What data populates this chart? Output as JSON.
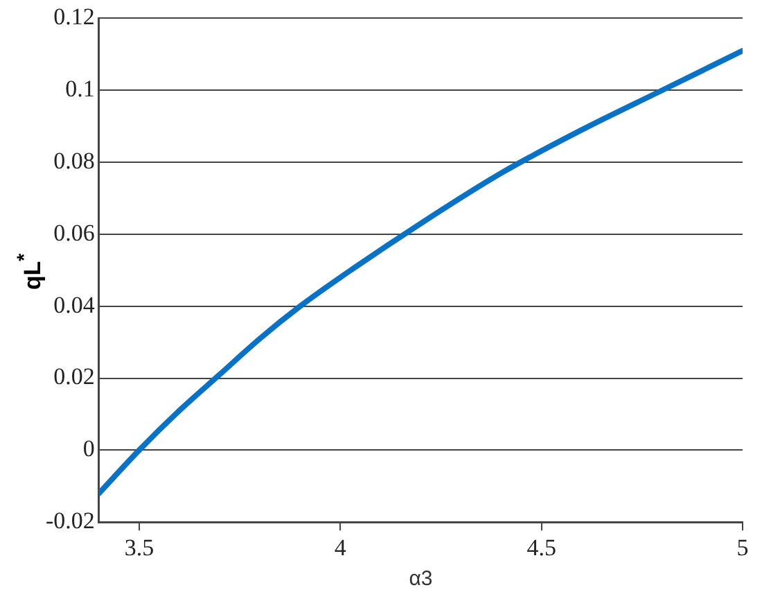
{
  "chart_data": {
    "type": "line",
    "xlabel": "α3",
    "ylabel": "qL$^{*}$",
    "x": [
      3.4,
      3.5,
      3.6,
      3.7,
      3.8,
      3.9,
      4.0,
      4.2,
      4.4,
      4.6,
      4.8,
      5.0
    ],
    "series": [
      {
        "color": "#0a72c4",
        "values": [
          -0.012,
          0.0,
          0.011,
          0.021,
          0.031,
          0.04,
          0.048,
          0.063,
          0.077,
          0.089,
          0.1,
          0.111
        ]
      }
    ],
    "xlim": [
      3.4,
      5
    ],
    "xticks": [
      3.5,
      4,
      4.5,
      5
    ],
    "ylim": [
      -0.02,
      0.12
    ],
    "yticks": [
      -0.02,
      0,
      0.02,
      0.04,
      0.06,
      0.08,
      0.1,
      0.12
    ],
    "grid": "y",
    "legend": false,
    "marker": "none",
    "line_style": "solid"
  }
}
